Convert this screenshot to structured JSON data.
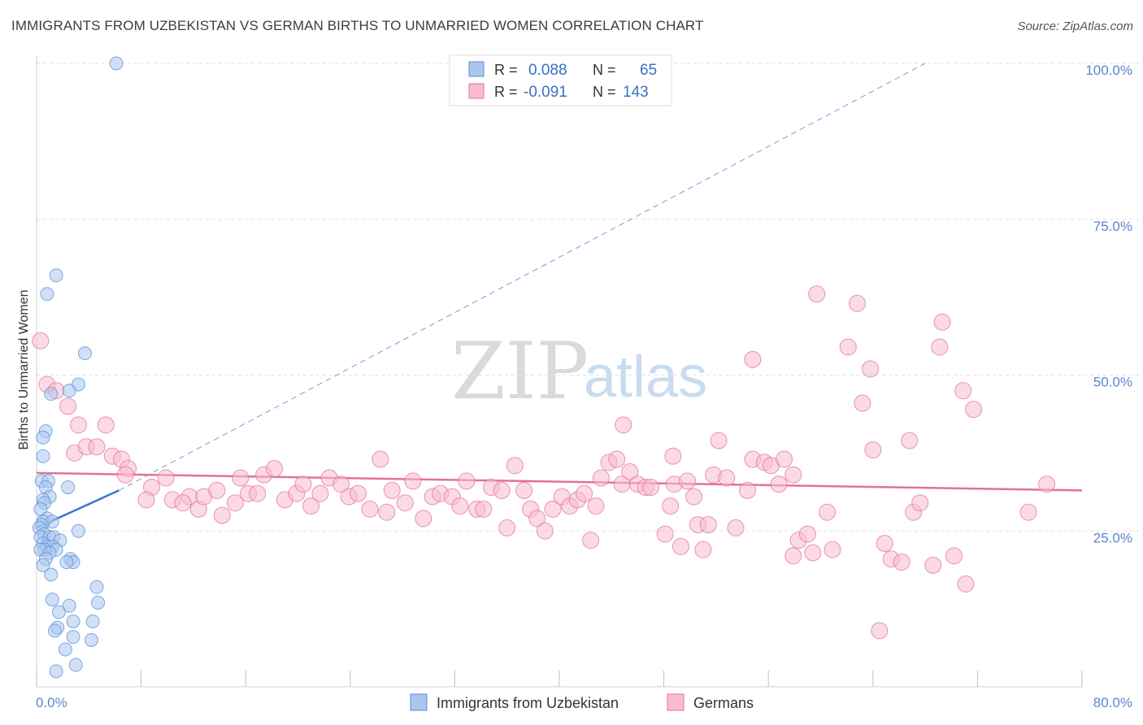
{
  "header": {
    "title": "IMMIGRANTS FROM UZBEKISTAN VS GERMAN BIRTHS TO UNMARRIED WOMEN CORRELATION CHART",
    "source": "Source: ZipAtlas.com"
  },
  "watermark": {
    "zip": "ZIP",
    "atlas": "atlas"
  },
  "chart_data": {
    "type": "scatter",
    "title": "IMMIGRANTS FROM UZBEKISTAN VS GERMAN BIRTHS TO UNMARRIED WOMEN CORRELATION CHART",
    "ylabel": "Births to Unmarried Women",
    "xlabel": "",
    "xlim": [
      0,
      80
    ],
    "ylim": [
      0,
      100
    ],
    "x_ticks": [
      "0.0%",
      "80.0%"
    ],
    "y_ticks": [
      {
        "value": 100,
        "label": "100.0%"
      },
      {
        "value": 75,
        "label": "75.0%"
      },
      {
        "value": 50,
        "label": "50.0%"
      },
      {
        "value": 25,
        "label": "25.0%"
      }
    ],
    "grid": "horizontal dashed",
    "legend_position": "top-center",
    "stats": [
      {
        "r_label": "R =",
        "r": "0.088",
        "n_label": "N =",
        "n": "65"
      },
      {
        "r_label": "R =",
        "r": "-0.091",
        "n_label": "N =",
        "n": "143"
      }
    ],
    "series": [
      {
        "name": "Immigrants from Uzbekistan",
        "color": "#5b8fd6",
        "fill": "#a9c7ee",
        "trend": {
          "x": [
            0,
            6.3
          ],
          "y": [
            25.5,
            31.5
          ]
        },
        "trend_extended": {
          "x": [
            6.3,
            68
          ],
          "y": [
            31.5,
            100
          ]
        },
        "points": [
          [
            6.1,
            100
          ],
          [
            1.5,
            66
          ],
          [
            0.8,
            63
          ],
          [
            3.7,
            53.5
          ],
          [
            3.2,
            48.5
          ],
          [
            1.1,
            47
          ],
          [
            2.5,
            47.5
          ],
          [
            0.7,
            41
          ],
          [
            0.5,
            40
          ],
          [
            0.5,
            37
          ],
          [
            0.4,
            33
          ],
          [
            0.9,
            33
          ],
          [
            0.7,
            32
          ],
          [
            2.4,
            32
          ],
          [
            1.0,
            30.5
          ],
          [
            0.5,
            30
          ],
          [
            0.6,
            29.5
          ],
          [
            0.3,
            28.5
          ],
          [
            0.8,
            27
          ],
          [
            0.5,
            26.5
          ],
          [
            1.2,
            26.5
          ],
          [
            0.4,
            26
          ],
          [
            0.2,
            25.5
          ],
          [
            3.2,
            25
          ],
          [
            0.6,
            24.5
          ],
          [
            0.3,
            24
          ],
          [
            1.0,
            24
          ],
          [
            1.3,
            24
          ],
          [
            1.8,
            23.5
          ],
          [
            0.5,
            23
          ],
          [
            0.8,
            22.5
          ],
          [
            1.2,
            22.5
          ],
          [
            0.6,
            22
          ],
          [
            0.3,
            22
          ],
          [
            1.5,
            22
          ],
          [
            1.0,
            21.5
          ],
          [
            0.7,
            20.5
          ],
          [
            2.6,
            20.5
          ],
          [
            2.8,
            20
          ],
          [
            2.3,
            20
          ],
          [
            0.5,
            19.5
          ],
          [
            1.1,
            18
          ],
          [
            4.6,
            16
          ],
          [
            1.2,
            14
          ],
          [
            4.7,
            13.5
          ],
          [
            2.5,
            13
          ],
          [
            1.7,
            12
          ],
          [
            2.8,
            10.5
          ],
          [
            4.3,
            10.5
          ],
          [
            1.6,
            9.5
          ],
          [
            1.4,
            9
          ],
          [
            2.8,
            8
          ],
          [
            4.2,
            7.5
          ],
          [
            2.2,
            6
          ],
          [
            3.0,
            3.5
          ],
          [
            1.5,
            2.5
          ]
        ]
      },
      {
        "name": "Germans",
        "color": "#e3719a",
        "fill": "#f7bcd0",
        "trend": {
          "x": [
            0,
            80
          ],
          "y": [
            34.3,
            31.5
          ]
        },
        "points": [
          [
            0.3,
            55.5
          ],
          [
            0.8,
            48.5
          ],
          [
            1.5,
            47.5
          ],
          [
            2.4,
            45
          ],
          [
            3.2,
            42
          ],
          [
            5.3,
            42
          ],
          [
            2.9,
            37.5
          ],
          [
            3.8,
            38.5
          ],
          [
            4.6,
            38.5
          ],
          [
            5.8,
            37
          ],
          [
            6.5,
            36.5
          ],
          [
            7.0,
            35
          ],
          [
            6.8,
            34
          ],
          [
            9.9,
            33.5
          ],
          [
            8.8,
            32
          ],
          [
            8.4,
            30
          ],
          [
            10.4,
            30
          ],
          [
            11.7,
            30.5
          ],
          [
            12.4,
            28.5
          ],
          [
            11.2,
            29.5
          ],
          [
            12.8,
            30.5
          ],
          [
            13.8,
            31.5
          ],
          [
            14.2,
            27.5
          ],
          [
            15.2,
            29.5
          ],
          [
            15.6,
            33.5
          ],
          [
            16.2,
            31
          ],
          [
            16.9,
            31
          ],
          [
            17.4,
            34
          ],
          [
            18.2,
            35
          ],
          [
            19.0,
            30
          ],
          [
            19.9,
            31
          ],
          [
            20.4,
            32.5
          ],
          [
            21.0,
            29
          ],
          [
            21.7,
            31
          ],
          [
            22.4,
            33.5
          ],
          [
            23.3,
            32.5
          ],
          [
            23.9,
            30.5
          ],
          [
            24.6,
            31
          ],
          [
            25.5,
            28.5
          ],
          [
            26.3,
            36.5
          ],
          [
            26.8,
            28
          ],
          [
            27.2,
            31.5
          ],
          [
            28.2,
            29.5
          ],
          [
            28.8,
            33
          ],
          [
            29.6,
            27
          ],
          [
            30.3,
            30.5
          ],
          [
            30.9,
            31
          ],
          [
            31.8,
            30.5
          ],
          [
            32.4,
            29
          ],
          [
            32.9,
            33
          ],
          [
            33.7,
            28.5
          ],
          [
            34.2,
            28.5
          ],
          [
            34.8,
            32
          ],
          [
            35.6,
            31.5
          ],
          [
            36.0,
            25.5
          ],
          [
            36.6,
            35.5
          ],
          [
            37.3,
            31.5
          ],
          [
            37.8,
            28.5
          ],
          [
            38.3,
            27
          ],
          [
            38.9,
            25
          ],
          [
            39.5,
            28.5
          ],
          [
            40.2,
            30.5
          ],
          [
            40.8,
            29
          ],
          [
            41.4,
            30
          ],
          [
            41.9,
            31
          ],
          [
            42.4,
            23.5
          ],
          [
            42.8,
            29
          ],
          [
            43.2,
            33.5
          ],
          [
            43.8,
            36
          ],
          [
            44.4,
            36.5
          ],
          [
            44.8,
            32.5
          ],
          [
            44.9,
            42
          ],
          [
            45.4,
            34.5
          ],
          [
            46.0,
            32.5
          ],
          [
            46.6,
            32
          ],
          [
            47.0,
            32
          ],
          [
            48.1,
            24.5
          ],
          [
            48.5,
            29
          ],
          [
            48.8,
            32.5
          ],
          [
            48.7,
            37
          ],
          [
            49.3,
            22.5
          ],
          [
            49.8,
            33
          ],
          [
            50.3,
            30.5
          ],
          [
            50.6,
            26
          ],
          [
            51.0,
            22
          ],
          [
            51.4,
            26
          ],
          [
            51.8,
            34
          ],
          [
            52.2,
            39.5
          ],
          [
            52.8,
            33.5
          ],
          [
            53.5,
            25.5
          ],
          [
            54.4,
            31.5
          ],
          [
            54.8,
            36.5
          ],
          [
            54.8,
            52.5
          ],
          [
            55.7,
            36
          ],
          [
            56.2,
            35.5
          ],
          [
            56.8,
            32.5
          ],
          [
            57.2,
            36.5
          ],
          [
            57.9,
            34
          ],
          [
            57.9,
            21
          ],
          [
            58.3,
            23.5
          ],
          [
            59.0,
            24.5
          ],
          [
            59.4,
            21.5
          ],
          [
            59.7,
            63
          ],
          [
            60.5,
            28
          ],
          [
            60.9,
            22
          ],
          [
            62.1,
            54.5
          ],
          [
            62.8,
            61.5
          ],
          [
            63.2,
            45.5
          ],
          [
            63.8,
            51
          ],
          [
            64.0,
            38
          ],
          [
            64.5,
            9
          ],
          [
            64.9,
            23
          ],
          [
            65.4,
            20.5
          ],
          [
            66.2,
            20
          ],
          [
            66.8,
            39.5
          ],
          [
            67.1,
            28
          ],
          [
            67.6,
            29.5
          ],
          [
            68.6,
            19.5
          ],
          [
            69.1,
            54.5
          ],
          [
            69.3,
            58.5
          ],
          [
            70.2,
            21
          ],
          [
            70.9,
            47.5
          ],
          [
            71.1,
            16.5
          ],
          [
            71.7,
            44.5
          ],
          [
            75.9,
            28
          ],
          [
            77.3,
            32.5
          ]
        ]
      }
    ]
  },
  "bottom_legend": [
    {
      "label": "Immigrants from Uzbekistan",
      "color": "#a9c7ee",
      "border": "#5b8fd6"
    },
    {
      "label": "Germans",
      "color": "#f7bcd0",
      "border": "#e3719a"
    }
  ]
}
